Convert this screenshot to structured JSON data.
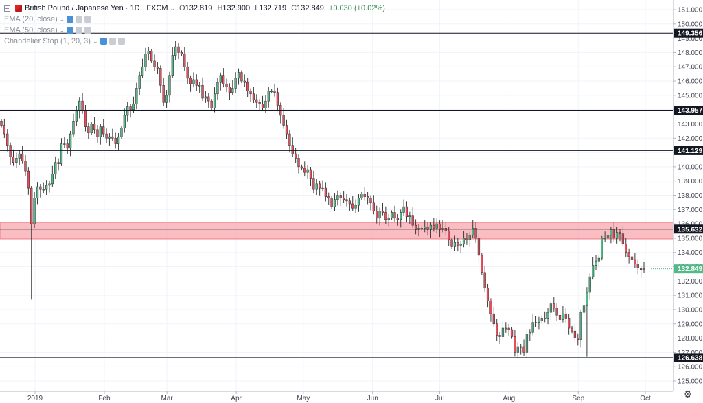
{
  "legend": {
    "symbol": "British Pound / Japanese Yen · 1D · FXCM",
    "ohlc": {
      "o_label": "O",
      "o": "132.819",
      "h_label": "H",
      "h": "132.900",
      "l_label": "L",
      "l": "132.719",
      "c_label": "C",
      "c": "132.849",
      "change": "+0.030 (+0.02%)"
    },
    "studies": [
      "EMA (20, close)",
      "EMA (50, close)",
      "Chandelier Stop (1, 20, 3)"
    ]
  },
  "colors": {
    "up": "#53b987",
    "down": "#eb4d5c",
    "zone": "#f8a7ad",
    "last_price_bg": "#53b987",
    "level_label_bg": "#131722"
  },
  "chart_data": {
    "type": "candlestick",
    "title": "British Pound / Japanese Yen · 1D · FXCM",
    "y_axis": {
      "range": [
        124.5,
        151.4
      ],
      "ticks": [
        "125.000",
        "126.000",
        "127.000",
        "128.000",
        "129.000",
        "130.000",
        "131.000",
        "132.000",
        "133.000",
        "134.000",
        "135.000",
        "136.000",
        "137.000",
        "138.000",
        "139.000",
        "140.000",
        "141.000",
        "142.000",
        "143.000",
        "144.000",
        "145.000",
        "146.000",
        "147.000",
        "148.000",
        "149.000",
        "150.000",
        "151.000"
      ]
    },
    "x_axis": {
      "ticks": [
        {
          "label": "2019",
          "day": 0
        },
        {
          "label": "Feb",
          "day": 31
        },
        {
          "label": "Mar",
          "day": 59
        },
        {
          "label": "Apr",
          "day": 90
        },
        {
          "label": "May",
          "day": 120
        },
        {
          "label": "Jun",
          "day": 151
        },
        {
          "label": "Jul",
          "day": 181
        },
        {
          "label": "Aug",
          "day": 212
        },
        {
          "label": "Sep",
          "day": 243
        },
        {
          "label": "Oct",
          "day": 273
        }
      ]
    },
    "horizontal_levels": [
      "149.356",
      "143.957",
      "141.129",
      "135.632",
      "126.638"
    ],
    "zone": {
      "low": 134.95,
      "high": 136.1
    },
    "last_price": "132.849",
    "closes": [
      142.9,
      142.3,
      141.5,
      140.7,
      140.3,
      140.6,
      140.9,
      140.4,
      139.7,
      138.5,
      136.0,
      137.8,
      138.6,
      138.4,
      138.4,
      138.7,
      138.8,
      139.5,
      140.3,
      140.2,
      141.6,
      141.6,
      141.3,
      142.3,
      143.2,
      143.9,
      144.6,
      143.9,
      142.8,
      142.4,
      143.0,
      142.6,
      142.1,
      142.8,
      142.3,
      142.0,
      142.1,
      142.0,
      141.6,
      142.1,
      142.7,
      143.6,
      144.2,
      144.0,
      144.4,
      145.5,
      146.4,
      147.0,
      147.9,
      148.1,
      147.4,
      147.0,
      146.9,
      145.7,
      144.5,
      145.0,
      146.4,
      147.8,
      148.4,
      148.0,
      147.9,
      147.0,
      146.2,
      145.8,
      146.1,
      145.7,
      145.7,
      144.8,
      144.9,
      144.6,
      144.1,
      145.1,
      145.9,
      146.4,
      145.8,
      145.6,
      145.2,
      145.5,
      146.2,
      146.6,
      146.0,
      145.9,
      145.3,
      145.1,
      144.7,
      144.5,
      144.4,
      144.1,
      144.6,
      145.3,
      145.3,
      145.2,
      144.3,
      143.6,
      142.9,
      142.3,
      141.5,
      140.9,
      140.6,
      140.0,
      139.9,
      139.6,
      139.8,
      139.2,
      138.4,
      138.8,
      138.5,
      138.5,
      137.9,
      137.8,
      137.2,
      137.7,
      138.0,
      137.8,
      137.7,
      137.6,
      137.4,
      137.1,
      137.3,
      137.8,
      138.1,
      137.9,
      137.8,
      137.5,
      136.9,
      136.4,
      136.9,
      136.8,
      136.3,
      136.4,
      136.8,
      136.4,
      136.3,
      136.8,
      137.2,
      136.5,
      136.6,
      135.9,
      135.6,
      135.7,
      135.7,
      135.8,
      135.6,
      135.9,
      135.7,
      136.0,
      135.6,
      135.7,
      135.5,
      134.9,
      134.4,
      134.7,
      134.5,
      134.6,
      135.0,
      134.9,
      135.2,
      135.7,
      135.0,
      133.8,
      132.6,
      131.5,
      130.6,
      129.7,
      129.0,
      128.2,
      128.1,
      128.7,
      128.7,
      128.6,
      128.1,
      127.0,
      127.4,
      127.4,
      127.0,
      128.3,
      128.4,
      129.1,
      129.1,
      129.2,
      129.4,
      129.4,
      129.8,
      130.4,
      130.1,
      129.6,
      129.3,
      129.7,
      129.4,
      128.7,
      128.5,
      128.0,
      127.9,
      129.8,
      130.3,
      131.2,
      132.3,
      133.1,
      133.4,
      133.6,
      135.0,
      135.0,
      135.2,
      135.6,
      135.0,
      135.4,
      135.3,
      134.6,
      134.0,
      133.7,
      133.5,
      133.2,
      132.9,
      132.8,
      132.85
    ]
  }
}
